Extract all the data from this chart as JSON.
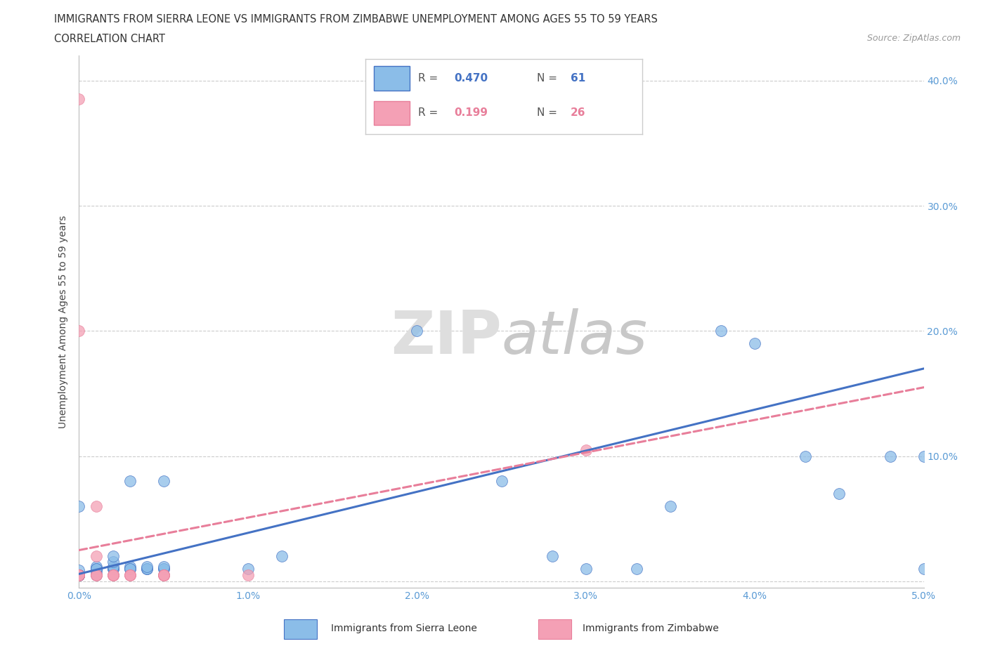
{
  "title_line1": "IMMIGRANTS FROM SIERRA LEONE VS IMMIGRANTS FROM ZIMBABWE UNEMPLOYMENT AMONG AGES 55 TO 59 YEARS",
  "title_line2": "CORRELATION CHART",
  "source_text": "Source: ZipAtlas.com",
  "ylabel": "Unemployment Among Ages 55 to 59 years",
  "xlim": [
    0.0,
    0.05
  ],
  "ylim": [
    -0.005,
    0.42
  ],
  "xticks": [
    0.0,
    0.01,
    0.02,
    0.03,
    0.04,
    0.05
  ],
  "xticklabels": [
    "0.0%",
    "1.0%",
    "2.0%",
    "3.0%",
    "4.0%",
    "5.0%"
  ],
  "yticks": [
    0.0,
    0.1,
    0.2,
    0.3,
    0.4
  ],
  "yticklabels_right": [
    "",
    "10.0%",
    "20.0%",
    "30.0%",
    "40.0%"
  ],
  "color_sierra": "#8BBDE8",
  "color_zimbabwe": "#F4A0B5",
  "color_sierra_line": "#4472C4",
  "color_zimbabwe_line": "#E87E9A",
  "watermark_color": "#DEDEDE",
  "sierra_x": [
    0.0,
    0.0,
    0.0,
    0.0,
    0.0,
    0.0,
    0.0,
    0.0,
    0.0,
    0.0,
    0.0,
    0.0,
    0.0,
    0.0,
    0.0,
    0.0,
    0.0,
    0.0,
    0.0,
    0.0,
    0.001,
    0.001,
    0.001,
    0.001,
    0.001,
    0.001,
    0.001,
    0.002,
    0.002,
    0.002,
    0.002,
    0.002,
    0.002,
    0.003,
    0.003,
    0.003,
    0.003,
    0.003,
    0.004,
    0.004,
    0.004,
    0.004,
    0.005,
    0.005,
    0.005,
    0.005,
    0.01,
    0.012,
    0.02,
    0.025,
    0.028,
    0.03,
    0.033,
    0.035,
    0.038,
    0.04,
    0.043,
    0.045,
    0.048,
    0.05,
    0.05
  ],
  "sierra_y": [
    0.005,
    0.005,
    0.005,
    0.005,
    0.005,
    0.005,
    0.005,
    0.005,
    0.005,
    0.005,
    0.005,
    0.005,
    0.06,
    0.005,
    0.009,
    0.005,
    0.005,
    0.005,
    0.005,
    0.005,
    0.005,
    0.008,
    0.01,
    0.01,
    0.01,
    0.012,
    0.01,
    0.01,
    0.01,
    0.01,
    0.012,
    0.016,
    0.02,
    0.01,
    0.01,
    0.012,
    0.01,
    0.08,
    0.01,
    0.01,
    0.01,
    0.012,
    0.01,
    0.01,
    0.08,
    0.012,
    0.01,
    0.02,
    0.2,
    0.08,
    0.02,
    0.01,
    0.01,
    0.06,
    0.2,
    0.19,
    0.1,
    0.07,
    0.1,
    0.1,
    0.01
  ],
  "zimbabwe_x": [
    0.0,
    0.0,
    0.0,
    0.0,
    0.0,
    0.0,
    0.0,
    0.001,
    0.001,
    0.001,
    0.001,
    0.001,
    0.002,
    0.002,
    0.002,
    0.002,
    0.003,
    0.003,
    0.003,
    0.005,
    0.005,
    0.005,
    0.005,
    0.005,
    0.01,
    0.03
  ],
  "zimbabwe_y": [
    0.005,
    0.005,
    0.005,
    0.005,
    0.005,
    0.2,
    0.385,
    0.005,
    0.005,
    0.02,
    0.06,
    0.005,
    0.005,
    0.005,
    0.005,
    0.005,
    0.005,
    0.005,
    0.005,
    0.005,
    0.005,
    0.005,
    0.005,
    0.005,
    0.005,
    0.105
  ],
  "trend_sierra_x0": 0.0,
  "trend_sierra_x1": 0.05,
  "trend_sierra_y0": 0.006,
  "trend_sierra_y1": 0.17,
  "trend_zimbabwe_x0": 0.0,
  "trend_zimbabwe_x1": 0.05,
  "trend_zimbabwe_y0": 0.025,
  "trend_zimbabwe_y1": 0.155
}
